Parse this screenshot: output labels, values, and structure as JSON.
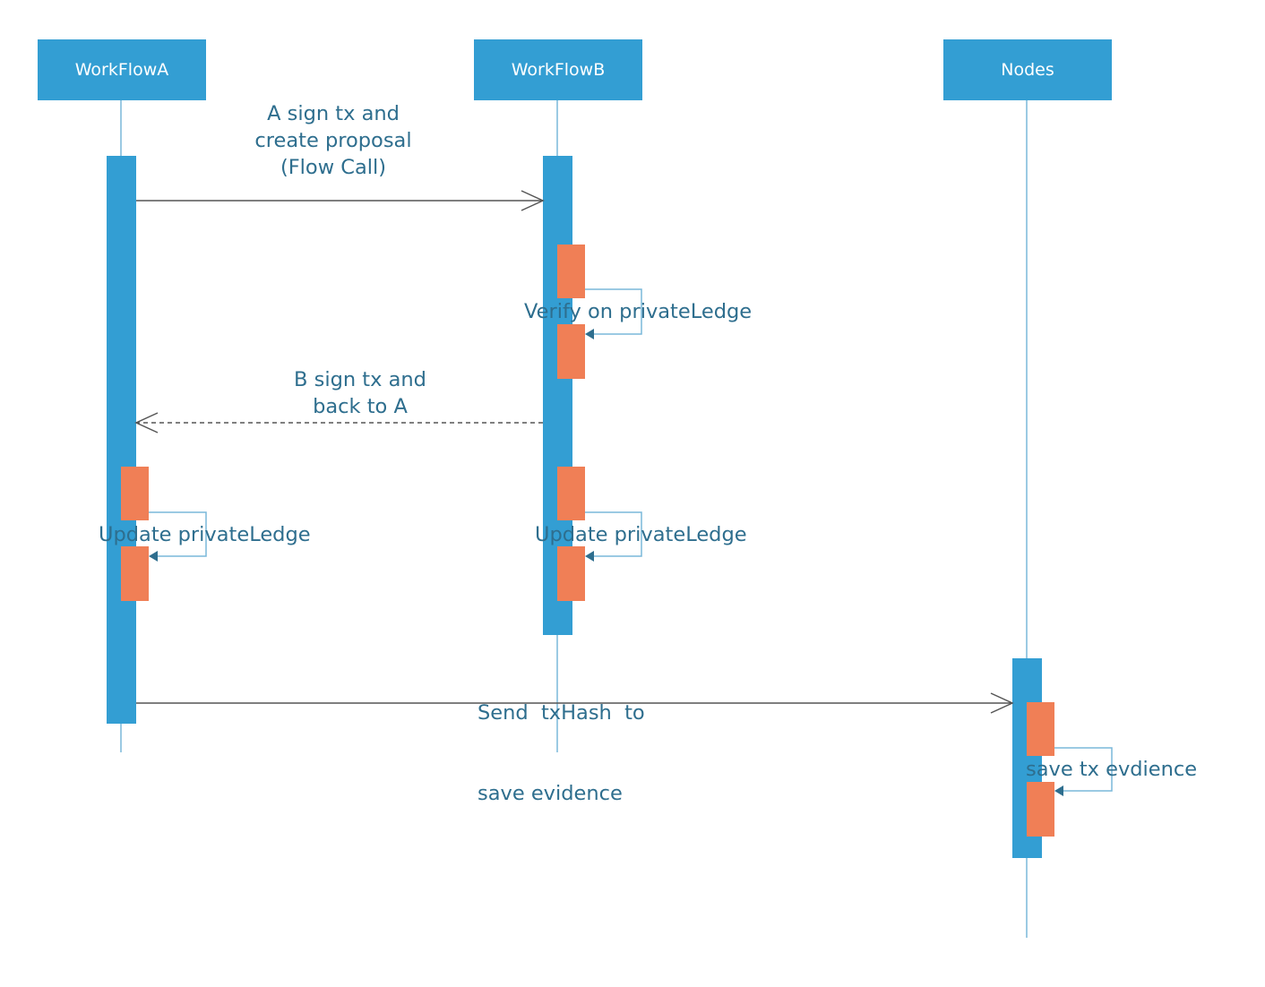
{
  "participants": [
    {
      "id": "workflowa",
      "label": "WorkFlowA"
    },
    {
      "id": "workflowb",
      "label": "WorkFlowB"
    },
    {
      "id": "nodes",
      "label": "Nodes"
    }
  ],
  "messages": {
    "a_to_b": [
      "A sign tx and",
      "create proposal",
      "(Flow Call)"
    ],
    "b_self": "Verify on privateLedge",
    "b_to_a": [
      "B sign tx and",
      "back to A"
    ],
    "a_self": "Update privateLedge",
    "b_self_update": "Update privateLedge",
    "a_to_nodes": [
      "Send  txHash  to",
      "save evidence"
    ],
    "nodes_self": "save tx evdience"
  },
  "colors": {
    "participant": "#339ed3",
    "activation": "#339ed3",
    "self_call_box": "#f07f56",
    "lifeline": "#7ab8da",
    "message_line": "#555555",
    "label_text": "#2e6e8e",
    "self_arrow": "#2e6e8e"
  }
}
